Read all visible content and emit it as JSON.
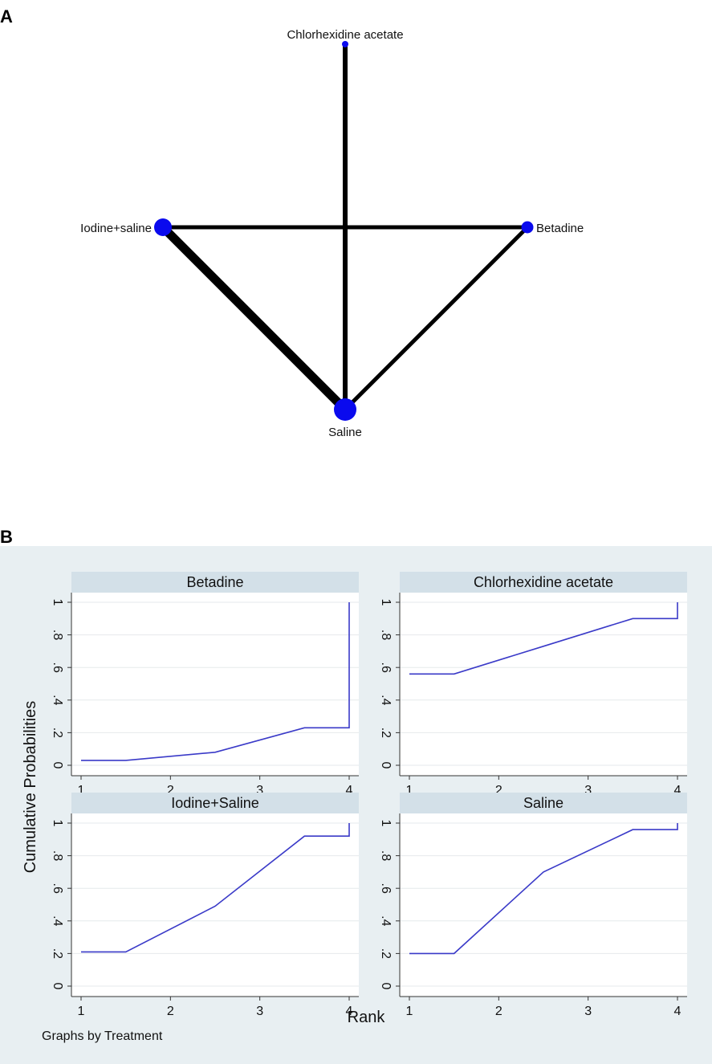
{
  "panel_a_label": "A",
  "panel_b_label": "B",
  "chart_data": [
    {
      "type": "network",
      "nodes": [
        {
          "id": "chlorhexidine",
          "label": "Chlorhexidine acetate"
        },
        {
          "id": "iodine",
          "label": "Iodine+saline"
        },
        {
          "id": "betadine",
          "label": "Betadine"
        },
        {
          "id": "saline",
          "label": "Saline"
        }
      ],
      "edges": [
        {
          "from": "chlorhexidine",
          "to": "saline"
        },
        {
          "from": "iodine",
          "to": "betadine"
        },
        {
          "from": "iodine",
          "to": "saline"
        },
        {
          "from": "betadine",
          "to": "saline"
        }
      ]
    },
    {
      "type": "line",
      "ylabel": "Cumulative Probabilities",
      "xlabel": "Rank",
      "note": "Graphs by Treatment",
      "xlim": [
        1,
        4
      ],
      "ylim": [
        0,
        1
      ],
      "xticks": [
        "1",
        "2",
        "3",
        "4"
      ],
      "yticks": [
        "0",
        ".2",
        ".4",
        ".6",
        ".8",
        "1"
      ],
      "line_color": "#3a3ac8",
      "facets": [
        {
          "title": "Betadine",
          "points": [
            [
              1,
              0.03
            ],
            [
              1.5,
              0.03
            ],
            [
              2.5,
              0.08
            ],
            [
              3.5,
              0.23
            ],
            [
              4,
              0.23
            ],
            [
              4,
              1
            ]
          ]
        },
        {
          "title": "Chlorhexidine acetate",
          "points": [
            [
              1,
              0.56
            ],
            [
              1.5,
              0.56
            ],
            [
              2.5,
              0.73
            ],
            [
              3.5,
              0.9
            ],
            [
              4,
              0.9
            ],
            [
              4,
              1
            ]
          ]
        },
        {
          "title": "Iodine+Saline",
          "points": [
            [
              1,
              0.21
            ],
            [
              1.5,
              0.21
            ],
            [
              2.5,
              0.49
            ],
            [
              3.5,
              0.92
            ],
            [
              4,
              0.92
            ],
            [
              4,
              1
            ]
          ]
        },
        {
          "title": "Saline",
          "points": [
            [
              1,
              0.2
            ],
            [
              1.5,
              0.2
            ],
            [
              2.5,
              0.7
            ],
            [
              3.5,
              0.96
            ],
            [
              4,
              0.96
            ],
            [
              4,
              1
            ]
          ]
        }
      ]
    }
  ]
}
